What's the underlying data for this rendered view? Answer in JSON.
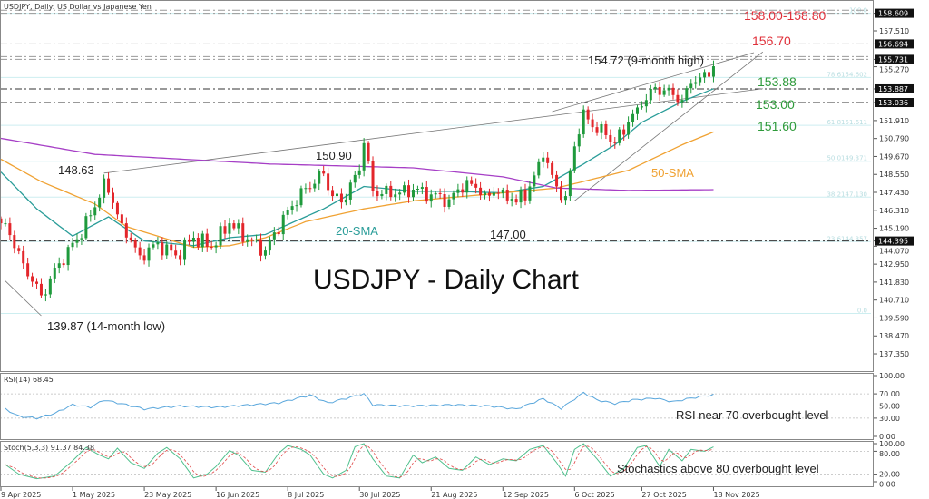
{
  "header": {
    "title": "USDJPY, Daily:  US Dollar vs Japanese Yen"
  },
  "colors": {
    "bull": "#1f9a3c",
    "bear": "#e3262b",
    "sma20": "#2a9d99",
    "sma50": "#f0a233",
    "sma200": "#a63fc6",
    "resistance": "#e0303a",
    "support": "#2e9a3a",
    "fib": "#cdeef0",
    "rsi": "#5aa7dc",
    "stoch_k": "#4fc08d",
    "stoch_d": "#e04848"
  },
  "chart_data": [
    {
      "type": "candlestick",
      "title": "USDJPY - Daily Chart",
      "ylim": [
        136.9,
        159.4
      ],
      "price_ticks": [
        "157.510",
        "155.270",
        "151.910",
        "150.790",
        "149.670",
        "148.550",
        "147.430",
        "146.310",
        "145.190",
        "144.070",
        "142.950",
        "141.830",
        "140.710",
        "139.590",
        "138.470",
        "137.350"
      ],
      "price_boxes": [
        "158.609",
        "156.694",
        "155.731",
        "153.887",
        "153.036",
        "144.395"
      ],
      "date_ticks": [
        {
          "date": "2025-04-09",
          "label": "9 Apr 2025"
        },
        {
          "date": "2025-05-01",
          "label": "1 May 2025"
        },
        {
          "date": "2025-05-23",
          "label": "23 May 2025"
        },
        {
          "date": "2025-06-16",
          "label": "16 Jun 2025"
        },
        {
          "date": "2025-07-08",
          "label": "8 Jul 2025"
        },
        {
          "date": "2025-07-30",
          "label": "30 Jul 2025"
        },
        {
          "date": "2025-08-21",
          "label": "21 Aug 2025"
        },
        {
          "date": "2025-09-12",
          "label": "12 Sep 2025"
        },
        {
          "date": "2025-10-06",
          "label": "6 Oct 2025"
        },
        {
          "date": "2025-10-27",
          "label": "27 Oct 2025"
        },
        {
          "date": "2025-11-18",
          "label": "18 Nov 2025"
        }
      ],
      "closes": [
        [
          "2025-04-09",
          145.5
        ],
        [
          "2025-04-10",
          145.5
        ],
        [
          "2025-04-16",
          143.0
        ],
        [
          "2025-04-22",
          141.0
        ],
        [
          "2025-04-28",
          143.0
        ],
        [
          "2025-05-02",
          144.5
        ],
        [
          "2025-05-08",
          146.5
        ],
        [
          "2025-05-12",
          148.3
        ],
        [
          "2025-05-16",
          145.5
        ],
        [
          "2025-05-22",
          143.5
        ],
        [
          "2025-05-28",
          144.3
        ],
        [
          "2025-06-03",
          143.5
        ],
        [
          "2025-06-09",
          144.6
        ],
        [
          "2025-06-13",
          144.0
        ],
        [
          "2025-06-19",
          145.5
        ],
        [
          "2025-06-25",
          144.5
        ],
        [
          "2025-07-01",
          143.8
        ],
        [
          "2025-07-08",
          146.3
        ],
        [
          "2025-07-14",
          147.7
        ],
        [
          "2025-07-18",
          148.6
        ],
        [
          "2025-07-22",
          147.2
        ],
        [
          "2025-07-24",
          146.8
        ],
        [
          "2025-07-30",
          148.8
        ],
        [
          "2025-07-31",
          150.5
        ],
        [
          "2025-08-04",
          147.5
        ],
        [
          "2025-08-11",
          147.3
        ],
        [
          "2025-08-15",
          147.6
        ],
        [
          "2025-08-21",
          147.3
        ],
        [
          "2025-08-27",
          147.0
        ],
        [
          "2025-09-02",
          148.2
        ],
        [
          "2025-09-08",
          147.4
        ],
        [
          "2025-09-12",
          147.6
        ],
        [
          "2025-09-17",
          146.8
        ],
        [
          "2025-09-22",
          147.8
        ],
        [
          "2025-09-25",
          149.6
        ],
        [
          "2025-09-30",
          147.8
        ],
        [
          "2025-10-02",
          147.2
        ],
        [
          "2025-10-06",
          150.3
        ],
        [
          "2025-10-08",
          152.6
        ],
        [
          "2025-10-10",
          151.5
        ],
        [
          "2025-10-15",
          151.0
        ],
        [
          "2025-10-17",
          150.5
        ],
        [
          "2025-10-22",
          151.8
        ],
        [
          "2025-10-27",
          152.8
        ],
        [
          "2025-10-30",
          154.0
        ],
        [
          "2025-11-03",
          153.8
        ],
        [
          "2025-11-05",
          153.5
        ],
        [
          "2025-11-07",
          153.2
        ],
        [
          "2025-11-11",
          154.2
        ],
        [
          "2025-11-13",
          154.6
        ],
        [
          "2025-11-18",
          155.3
        ]
      ],
      "sma": [
        {
          "name": "20-SMA",
          "color_key": "sma20",
          "points": [
            [
              "2025-04-09",
              148.7
            ],
            [
              "2025-04-21",
              146.4
            ],
            [
              "2025-05-01",
              144.7
            ],
            [
              "2025-05-13",
              145.9
            ],
            [
              "2025-05-23",
              144.4
            ],
            [
              "2025-06-09",
              144.1
            ],
            [
              "2025-06-19",
              144.6
            ],
            [
              "2025-07-01",
              144.8
            ],
            [
              "2025-07-18",
              146.4
            ],
            [
              "2025-07-31",
              147.8
            ],
            [
              "2025-08-15",
              147.5
            ],
            [
              "2025-08-27",
              147.5
            ],
            [
              "2025-09-12",
              147.4
            ],
            [
              "2025-09-25",
              147.8
            ],
            [
              "2025-10-08",
              149.2
            ],
            [
              "2025-10-17",
              150.4
            ],
            [
              "2025-10-27",
              151.8
            ],
            [
              "2025-11-07",
              153.1
            ],
            [
              "2025-11-18",
              153.9
            ]
          ]
        },
        {
          "name": "50-SMA",
          "color_key": "sma50",
          "points": [
            [
              "2025-04-09",
              149.5
            ],
            [
              "2025-04-22",
              148.1
            ],
            [
              "2025-05-08",
              146.7
            ],
            [
              "2025-05-19",
              145.3
            ],
            [
              "2025-06-09",
              144.0
            ],
            [
              "2025-06-19",
              144.1
            ],
            [
              "2025-07-01",
              144.6
            ],
            [
              "2025-07-14",
              145.6
            ],
            [
              "2025-07-31",
              146.4
            ],
            [
              "2025-08-15",
              146.9
            ],
            [
              "2025-09-12",
              147.4
            ],
            [
              "2025-09-30",
              147.7
            ],
            [
              "2025-10-22",
              148.8
            ],
            [
              "2025-11-07",
              150.4
            ],
            [
              "2025-11-18",
              151.2
            ]
          ]
        },
        {
          "name": "",
          "color_key": "sma200",
          "points": [
            [
              "2025-04-09",
              150.8
            ],
            [
              "2025-05-08",
              149.8
            ],
            [
              "2025-07-02",
              149.2
            ],
            [
              "2025-08-15",
              148.96
            ],
            [
              "2025-09-12",
              148.4
            ],
            [
              "2025-09-30",
              147.7
            ],
            [
              "2025-10-22",
              147.55
            ],
            [
              "2025-11-18",
              147.6
            ]
          ]
        }
      ],
      "trendlines": [
        [
          [
            "2025-05-12",
            148.63
          ],
          [
            "2025-12-03",
            153.9
          ]
        ],
        [
          [
            "2025-09-29",
            152.47
          ],
          [
            "2025-12-01",
            156.15
          ]
        ],
        [
          [
            "2025-10-06",
            146.9
          ],
          [
            "2025-12-03",
            156.2
          ]
        ],
        [
          [
            "2025-04-10",
            141.9
          ],
          [
            "2025-04-22",
            139.73
          ]
        ]
      ],
      "levels": [
        {
          "price": 158.8,
          "style": "light"
        },
        {
          "price": 158.609,
          "style": "light"
        },
        {
          "price": 156.694,
          "style": "light"
        },
        {
          "price": 155.9,
          "style": "light"
        },
        {
          "price": 155.731,
          "style": "light"
        },
        {
          "price": 153.887,
          "style": "dark"
        },
        {
          "price": 153.036,
          "style": "dark"
        },
        {
          "price": 144.395,
          "style": "dark"
        }
      ],
      "fib_levels": [
        {
          "price": 158.61,
          "label": "100.0"
        },
        {
          "price": 154.602,
          "label": "78.6154.602"
        },
        {
          "price": 151.611,
          "label": "61.8151.611"
        },
        {
          "price": 149.371,
          "label": "50.0149.371"
        },
        {
          "price": 147.13,
          "label": "38.2147.130"
        },
        {
          "price": 144.357,
          "label": "23.6144.357"
        },
        {
          "price": 139.87,
          "label": "0.0"
        }
      ],
      "annotations": {
        "res_zone": "158.00-158.80",
        "res_1": "156.70",
        "high_9m": "154.72 (9-month high)",
        "sup_1": "153.88",
        "sup_2": "153.00",
        "sup_3": "151.60",
        "sma50_label": "50-SMA",
        "sma20_label": "20-SMA",
        "high_jul": "150.90",
        "high_may": "148.63",
        "low_sep": "147.00",
        "low_14m": "139.87 (14-month low)"
      }
    },
    {
      "type": "line",
      "title": "RSI(14) 68.45",
      "ylim": [
        0,
        100
      ],
      "ticks": [
        "100.00",
        "70.00",
        "50.00",
        "30.00",
        "0.00"
      ],
      "note": "RSI near 70 overbought level",
      "values": [
        [
          "2025-04-10",
          45
        ],
        [
          "2025-04-15",
          33
        ],
        [
          "2025-04-21",
          30
        ],
        [
          "2025-04-25",
          38
        ],
        [
          "2025-05-01",
          52
        ],
        [
          "2025-05-07",
          48
        ],
        [
          "2025-05-12",
          60
        ],
        [
          "2025-05-19",
          52
        ],
        [
          "2025-05-23",
          45
        ],
        [
          "2025-06-04",
          50
        ],
        [
          "2025-06-16",
          48
        ],
        [
          "2025-06-26",
          52
        ],
        [
          "2025-07-04",
          55
        ],
        [
          "2025-07-15",
          68
        ],
        [
          "2025-07-21",
          55
        ],
        [
          "2025-07-31",
          70
        ],
        [
          "2025-08-04",
          52
        ],
        [
          "2025-08-14",
          50
        ],
        [
          "2025-08-28",
          52
        ],
        [
          "2025-09-09",
          50
        ],
        [
          "2025-09-17",
          45
        ],
        [
          "2025-09-25",
          62
        ],
        [
          "2025-10-01",
          46
        ],
        [
          "2025-10-08",
          72
        ],
        [
          "2025-10-13",
          60
        ],
        [
          "2025-10-17",
          54
        ],
        [
          "2025-10-23",
          60
        ],
        [
          "2025-10-30",
          63
        ],
        [
          "2025-11-05",
          57
        ],
        [
          "2025-11-11",
          63
        ],
        [
          "2025-11-18",
          68.45
        ]
      ]
    },
    {
      "type": "line",
      "title": "Stoch(5,3,3) 91.37 84.38",
      "ylim": [
        0,
        100
      ],
      "ticks": [
        "100.00",
        "80.00",
        "20.00",
        "0.00"
      ],
      "note": "Stochastics above 80 overbought level",
      "k_values": [
        [
          "2025-04-10",
          45
        ],
        [
          "2025-04-15",
          20
        ],
        [
          "2025-04-21",
          8
        ],
        [
          "2025-04-25",
          15
        ],
        [
          "2025-05-01",
          55
        ],
        [
          "2025-05-06",
          90
        ],
        [
          "2025-05-09",
          70
        ],
        [
          "2025-05-13",
          60
        ],
        [
          "2025-05-15",
          88
        ],
        [
          "2025-05-20",
          50
        ],
        [
          "2025-05-23",
          35
        ],
        [
          "2025-05-28",
          75
        ],
        [
          "2025-05-30",
          90
        ],
        [
          "2025-06-04",
          60
        ],
        [
          "2025-06-09",
          10
        ],
        [
          "2025-06-12",
          20
        ],
        [
          "2025-06-16",
          40
        ],
        [
          "2025-06-19",
          82
        ],
        [
          "2025-06-23",
          70
        ],
        [
          "2025-06-26",
          30
        ],
        [
          "2025-07-01",
          25
        ],
        [
          "2025-07-04",
          75
        ],
        [
          "2025-07-08",
          95
        ],
        [
          "2025-07-11",
          85
        ],
        [
          "2025-07-15",
          70
        ],
        [
          "2025-07-18",
          20
        ],
        [
          "2025-07-22",
          10
        ],
        [
          "2025-07-25",
          30
        ],
        [
          "2025-07-29",
          92
        ],
        [
          "2025-07-31",
          100
        ],
        [
          "2025-08-04",
          60
        ],
        [
          "2025-08-07",
          15
        ],
        [
          "2025-08-12",
          10
        ],
        [
          "2025-08-15",
          70
        ],
        [
          "2025-08-19",
          50
        ],
        [
          "2025-08-22",
          65
        ],
        [
          "2025-08-27",
          35
        ],
        [
          "2025-09-01",
          30
        ],
        [
          "2025-09-04",
          65
        ],
        [
          "2025-09-09",
          45
        ],
        [
          "2025-09-12",
          60
        ],
        [
          "2025-09-17",
          55
        ],
        [
          "2025-09-22",
          85
        ],
        [
          "2025-09-25",
          95
        ],
        [
          "2025-09-30",
          50
        ],
        [
          "2025-10-02",
          15
        ],
        [
          "2025-10-06",
          85
        ],
        [
          "2025-10-08",
          100
        ],
        [
          "2025-10-13",
          60
        ],
        [
          "2025-10-16",
          15
        ],
        [
          "2025-10-21",
          35
        ],
        [
          "2025-10-24",
          90
        ],
        [
          "2025-10-28",
          95
        ],
        [
          "2025-10-31",
          40
        ],
        [
          "2025-11-04",
          85
        ],
        [
          "2025-11-07",
          55
        ],
        [
          "2025-11-11",
          85
        ],
        [
          "2025-11-14",
          80
        ],
        [
          "2025-11-18",
          91.37
        ]
      ]
    }
  ]
}
